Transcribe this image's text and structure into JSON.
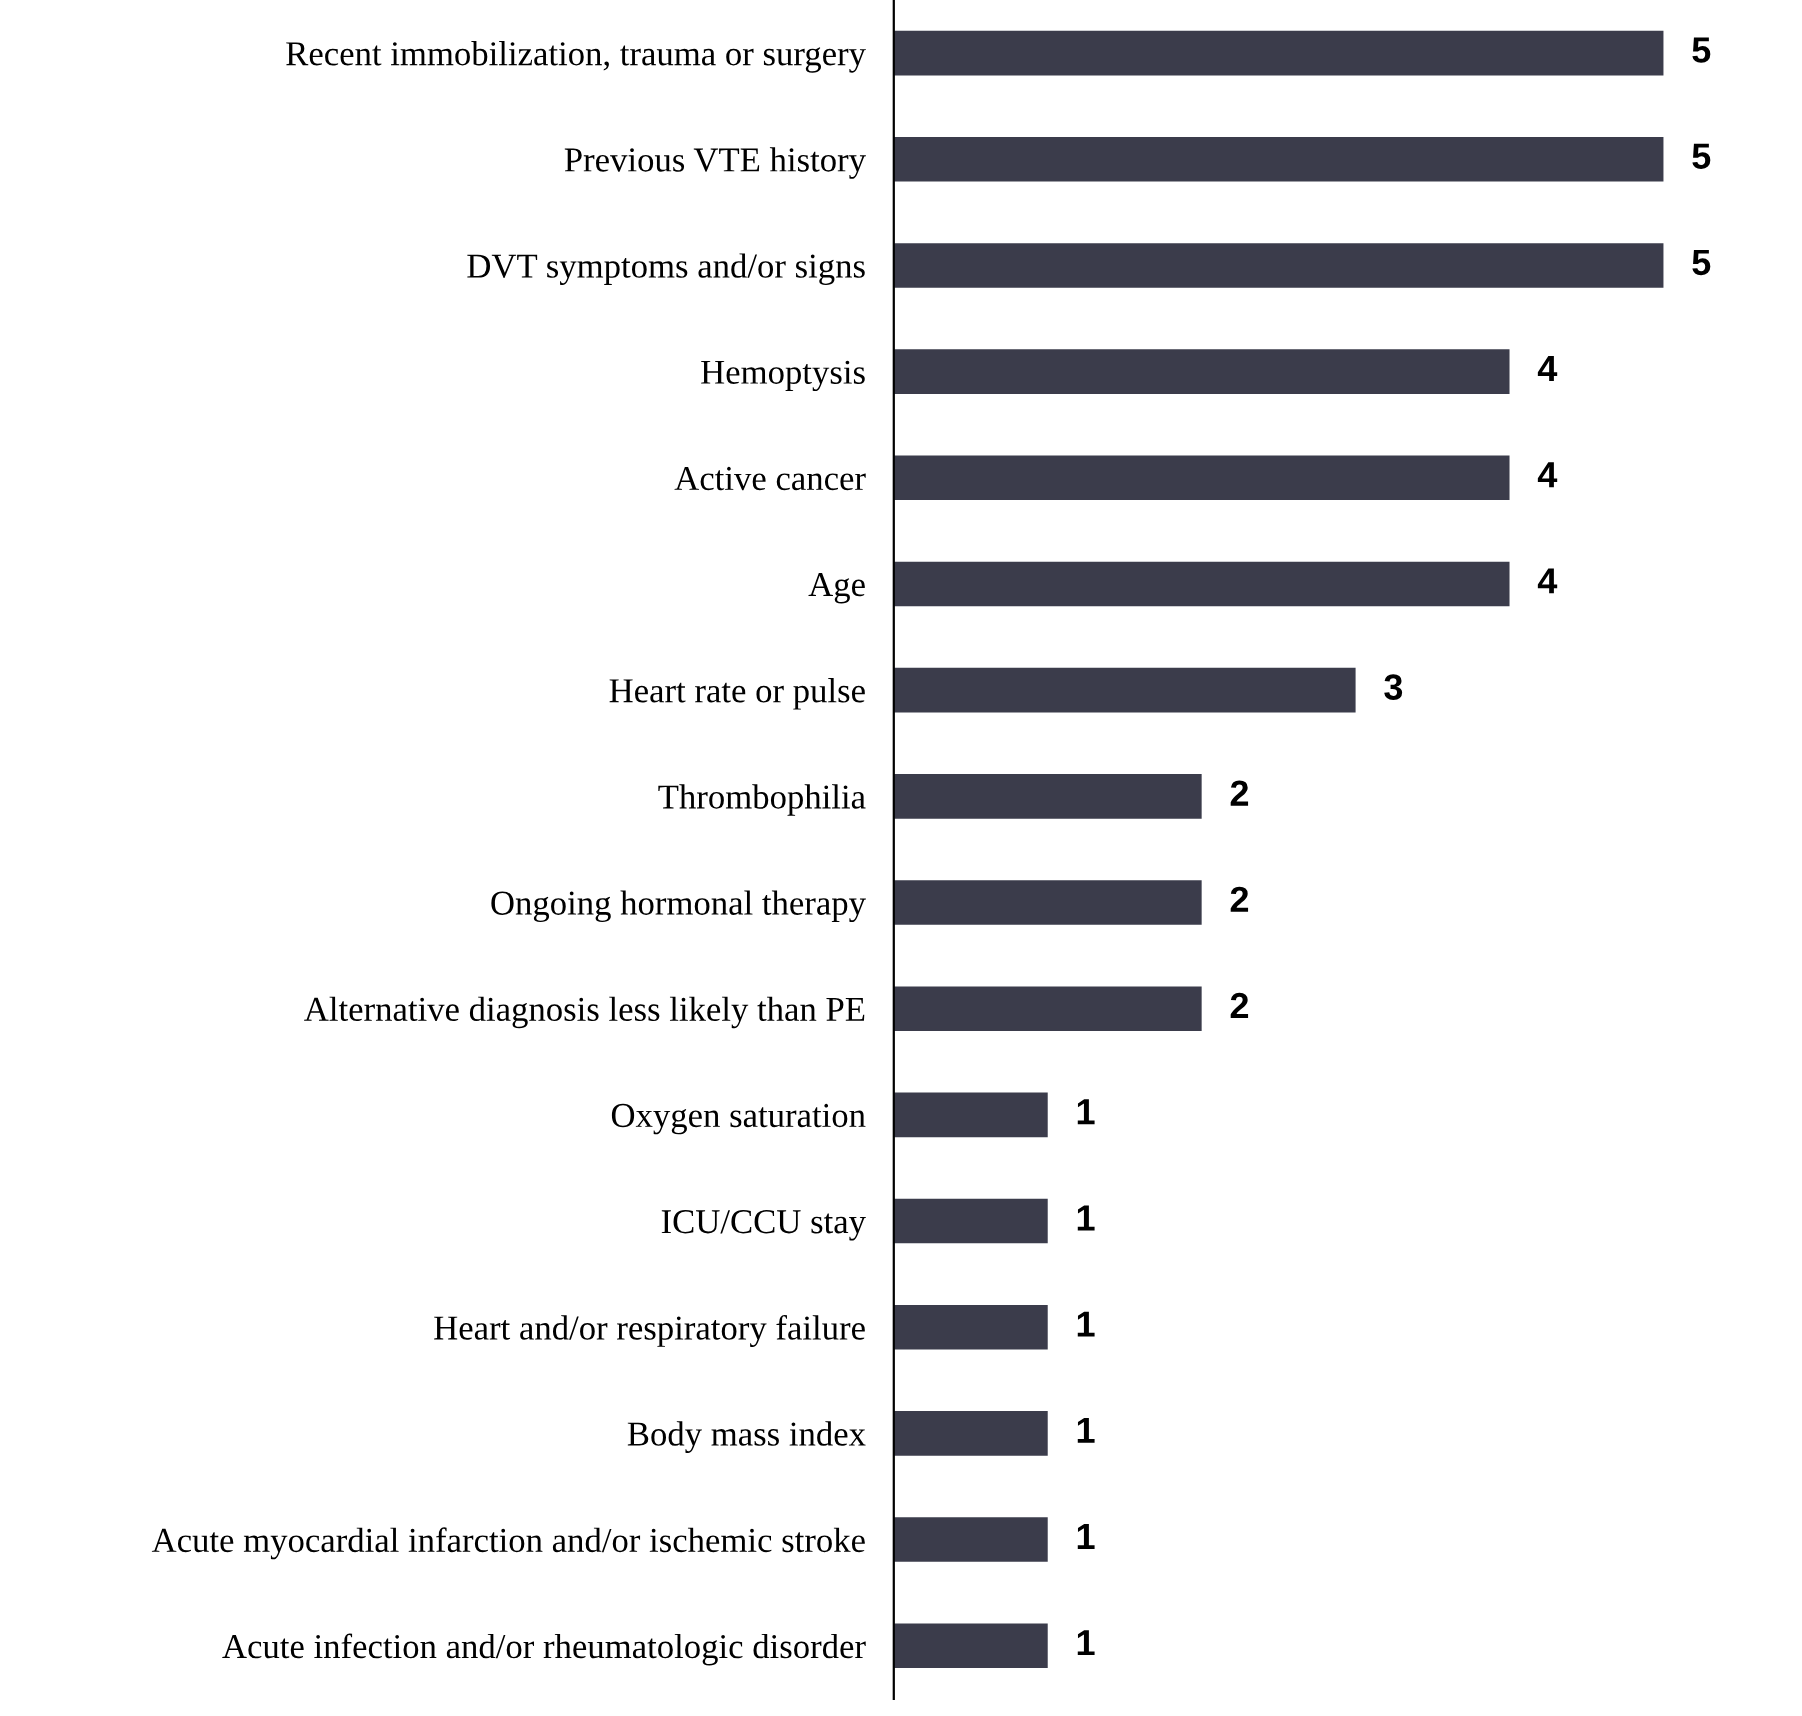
{
  "chart_data": {
    "type": "bar",
    "orientation": "horizontal",
    "categories": [
      "Recent immobilization, trauma or surgery",
      "Previous VTE history",
      "DVT symptoms and/or signs",
      "Hemoptysis",
      "Active cancer",
      "Age",
      "Heart rate or pulse",
      "Thrombophilia",
      "Ongoing hormonal therapy",
      "Alternative diagnosis less likely than PE",
      "Oxygen saturation",
      "ICU/CCU stay",
      "Heart and/or respiratory failure",
      "Body mass index",
      "Acute myocardial infarction and/or ischemic stroke",
      "Acute infection and/or rheumatologic disorder"
    ],
    "values": [
      5,
      5,
      5,
      4,
      4,
      4,
      3,
      2,
      2,
      2,
      1,
      1,
      1,
      1,
      1,
      1
    ],
    "color": "#3b3c4b",
    "tick_labels": "y",
    "data_labels": true,
    "grid": false,
    "legend": false
  }
}
